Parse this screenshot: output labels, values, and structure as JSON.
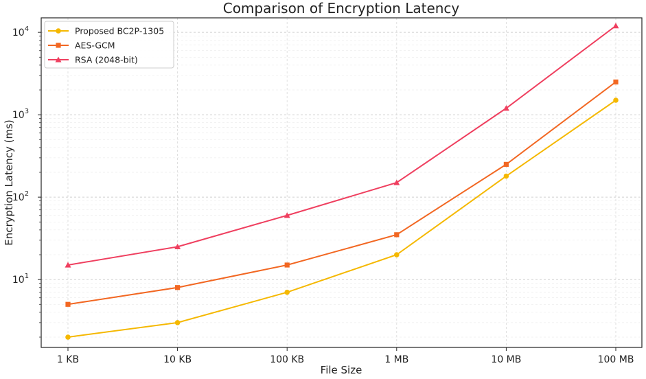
{
  "chart_data": {
    "type": "line",
    "title": "Comparison of Encryption Latency",
    "xlabel": "File Size",
    "ylabel": "Encryption Latency (ms)",
    "categories": [
      "1 KB",
      "10 KB",
      "100 KB",
      "1 MB",
      "10 MB",
      "100 MB"
    ],
    "yscale": "log",
    "ylim": [
      1.5,
      15000
    ],
    "yticks": [
      {
        "base": "10",
        "exp": "1",
        "value": 10
      },
      {
        "base": "10",
        "exp": "2",
        "value": 100
      },
      {
        "base": "10",
        "exp": "3",
        "value": 1000
      },
      {
        "base": "10",
        "exp": "4",
        "value": 10000
      }
    ],
    "grid": true,
    "legend_position": "top-left",
    "series": [
      {
        "name": "Proposed BC2P-1305",
        "color": "#f5b800",
        "marker": "circle",
        "values": [
          2,
          3,
          7,
          20,
          180,
          1500
        ]
      },
      {
        "name": "AES-GCM",
        "color": "#f26722",
        "marker": "square",
        "values": [
          5,
          8,
          15,
          35,
          250,
          2500
        ]
      },
      {
        "name": "RSA (2048-bit)",
        "color": "#ef3f5f",
        "marker": "triangle",
        "values": [
          15,
          25,
          60,
          150,
          1200,
          12000
        ]
      }
    ]
  }
}
